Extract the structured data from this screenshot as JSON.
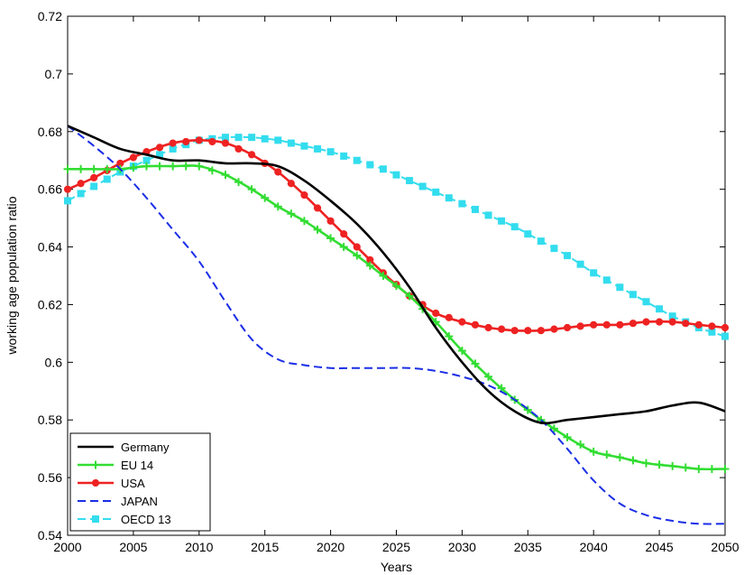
{
  "chart_data": {
    "type": "line",
    "xlabel": "Years",
    "ylabel": "working age population ratio",
    "xlim": [
      2000,
      2050
    ],
    "ylim": [
      0.54,
      0.72
    ],
    "xticks": [
      2000,
      2005,
      2010,
      2015,
      2020,
      2025,
      2030,
      2035,
      2040,
      2045,
      2050
    ],
    "yticks": [
      0.54,
      0.56,
      0.58,
      0.6,
      0.62,
      0.64,
      0.66,
      0.68,
      0.7,
      0.72
    ],
    "xtick_labels": [
      "2000",
      "2005",
      "2010",
      "2015",
      "2020",
      "2025",
      "2030",
      "2035",
      "2040",
      "2045",
      "2050"
    ],
    "ytick_labels": [
      "0.54",
      "0.56",
      "0.58",
      "0.6",
      "0.62",
      "0.64",
      "0.66",
      "0.68",
      "0.7",
      "0.72"
    ],
    "grid": false,
    "legend_position": "bottom-left",
    "series": [
      {
        "name": "Germany",
        "color": "#000000",
        "style": "solid",
        "marker": "none",
        "x": [
          2000,
          2002,
          2004,
          2006,
          2008,
          2010,
          2012,
          2014,
          2016,
          2018,
          2020,
          2022,
          2024,
          2026,
          2028,
          2030,
          2032,
          2034,
          2036,
          2038,
          2040,
          2042,
          2044,
          2046,
          2048,
          2050
        ],
        "y": [
          0.682,
          0.678,
          0.674,
          0.672,
          0.67,
          0.67,
          0.669,
          0.669,
          0.668,
          0.663,
          0.656,
          0.648,
          0.638,
          0.626,
          0.612,
          0.6,
          0.59,
          0.583,
          0.579,
          0.58,
          0.581,
          0.582,
          0.583,
          0.585,
          0.586,
          0.583
        ]
      },
      {
        "name": "EU 14",
        "color": "#33dd33",
        "style": "solid",
        "marker": "plus",
        "x": [
          2000,
          2002,
          2004,
          2006,
          2008,
          2010,
          2012,
          2014,
          2016,
          2018,
          2020,
          2022,
          2024,
          2026,
          2028,
          2030,
          2032,
          2034,
          2036,
          2038,
          2040,
          2042,
          2044,
          2046,
          2048,
          2050
        ],
        "y": [
          0.667,
          0.667,
          0.667,
          0.668,
          0.668,
          0.668,
          0.665,
          0.66,
          0.654,
          0.649,
          0.643,
          0.637,
          0.63,
          0.623,
          0.614,
          0.604,
          0.595,
          0.587,
          0.58,
          0.574,
          0.569,
          0.567,
          0.565,
          0.564,
          0.563,
          0.563
        ]
      },
      {
        "name": "USA",
        "color": "#ee2222",
        "style": "solid",
        "marker": "circle",
        "x": [
          2000,
          2002,
          2004,
          2006,
          2008,
          2010,
          2012,
          2014,
          2016,
          2018,
          2020,
          2022,
          2024,
          2026,
          2028,
          2030,
          2032,
          2034,
          2036,
          2038,
          2040,
          2042,
          2044,
          2046,
          2048,
          2050
        ],
        "y": [
          0.66,
          0.664,
          0.669,
          0.673,
          0.676,
          0.677,
          0.676,
          0.672,
          0.666,
          0.658,
          0.649,
          0.64,
          0.631,
          0.623,
          0.617,
          0.614,
          0.612,
          0.611,
          0.611,
          0.612,
          0.613,
          0.613,
          0.614,
          0.614,
          0.613,
          0.612
        ]
      },
      {
        "name": "JAPAN",
        "color": "#1a2ee6",
        "style": "dashed",
        "marker": "none",
        "x": [
          2000,
          2002,
          2004,
          2006,
          2008,
          2010,
          2012,
          2014,
          2016,
          2018,
          2020,
          2022,
          2024,
          2026,
          2028,
          2030,
          2032,
          2034,
          2036,
          2038,
          2040,
          2042,
          2044,
          2046,
          2048,
          2050
        ],
        "y": [
          0.682,
          0.675,
          0.667,
          0.657,
          0.646,
          0.635,
          0.621,
          0.608,
          0.601,
          0.599,
          0.598,
          0.598,
          0.598,
          0.598,
          0.597,
          0.595,
          0.592,
          0.587,
          0.58,
          0.57,
          0.559,
          0.551,
          0.547,
          0.545,
          0.544,
          0.544
        ]
      },
      {
        "name": "OECD 13",
        "color": "#33ddee",
        "style": "dashed",
        "marker": "square",
        "x": [
          2000,
          2002,
          2004,
          2006,
          2008,
          2010,
          2012,
          2014,
          2016,
          2018,
          2020,
          2022,
          2024,
          2026,
          2028,
          2030,
          2032,
          2034,
          2036,
          2038,
          2040,
          2042,
          2044,
          2046,
          2048,
          2050
        ],
        "y": [
          0.656,
          0.661,
          0.666,
          0.67,
          0.674,
          0.677,
          0.678,
          0.678,
          0.677,
          0.675,
          0.673,
          0.67,
          0.667,
          0.663,
          0.659,
          0.655,
          0.651,
          0.647,
          0.642,
          0.637,
          0.631,
          0.626,
          0.621,
          0.616,
          0.612,
          0.609
        ]
      }
    ]
  }
}
